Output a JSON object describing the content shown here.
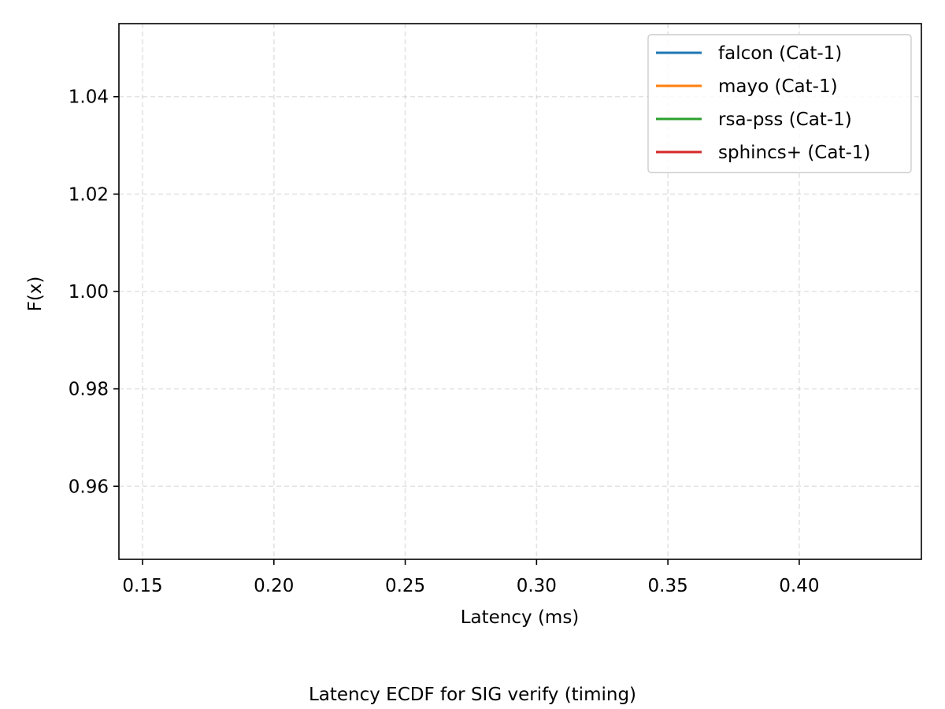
{
  "chart_data": {
    "type": "line",
    "title": "",
    "caption": "Latency ECDF for SIG verify (timing)",
    "xlabel": "Latency (ms)",
    "ylabel": "F(x)",
    "xlim": [
      0.141,
      0.4465
    ],
    "ylim": [
      0.945,
      1.055
    ],
    "xticks": [
      0.15,
      0.2,
      0.25,
      0.3,
      0.35,
      0.4
    ],
    "xtick_labels": [
      "0.15",
      "0.20",
      "0.25",
      "0.30",
      "0.35",
      "0.40"
    ],
    "yticks": [
      0.96,
      0.98,
      1.0,
      1.02,
      1.04
    ],
    "ytick_labels": [
      "0.96",
      "0.98",
      "1.00",
      "1.02",
      "1.04"
    ],
    "grid": true,
    "legend_position": "top-right",
    "series": [
      {
        "name": "falcon (Cat-1)",
        "color": "#1f77b4",
        "points": []
      },
      {
        "name": "mayo (Cat-1)",
        "color": "#ff7f0e",
        "points": []
      },
      {
        "name": "rsa-pss (Cat-1)",
        "color": "#2ca02c",
        "points": []
      },
      {
        "name": "sphincs+ (Cat-1)",
        "color": "#d62728",
        "points": []
      }
    ]
  }
}
